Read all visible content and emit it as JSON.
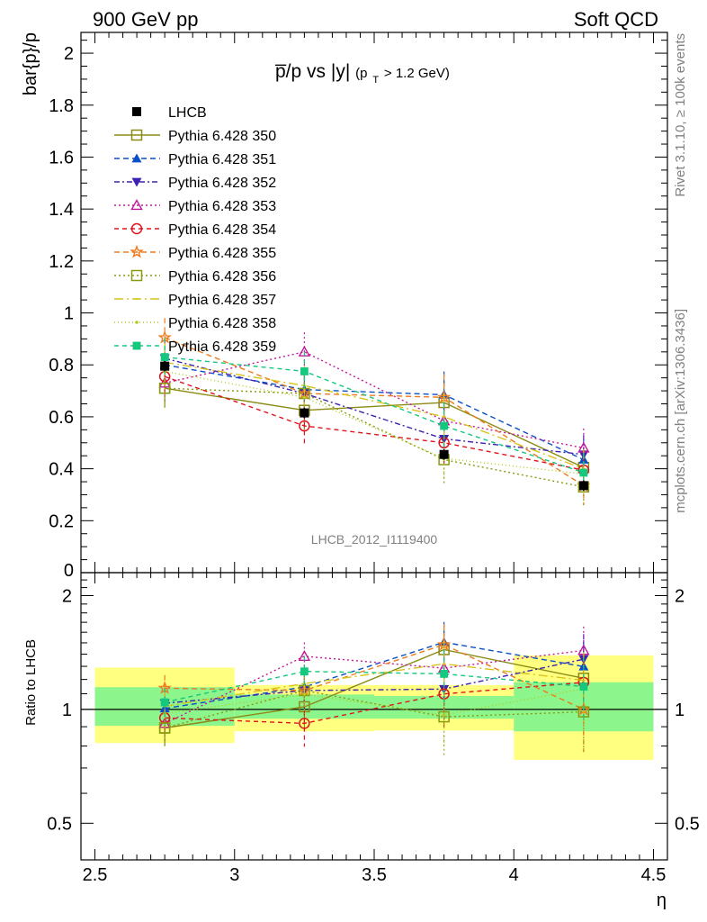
{
  "header": {
    "left": "900 GeV pp",
    "right": "Soft QCD"
  },
  "side": {
    "top": "Rivet 3.1.10, ≥ 100k events",
    "bottom": "mcplots.cern.ch [arXiv:1306.3436]"
  },
  "chart_data": {
    "type": "line",
    "title_main": "p̅/p vs |y|",
    "title_sub": "(p",
    "title_sub_t": "T",
    "title_sub_rest": " > 1.2 GeV)",
    "ylabel": "bar{p}/p",
    "xlabel": "η",
    "watermark": "LHCB_2012_I1119400",
    "ratio_ylabel": "Ratio to LHCB",
    "x": [
      2.75,
      3.25,
      3.75,
      4.25
    ],
    "xlim": [
      2.45,
      4.55
    ],
    "ylim": [
      0,
      2.08
    ],
    "ratio_ylim": [
      0.4,
      2.3
    ],
    "ratio_log": true,
    "xticks": [
      "2.5",
      "3",
      "3.5",
      "4",
      "4.5"
    ],
    "yticks": [
      "0",
      "0.2",
      "0.4",
      "0.6",
      "0.8",
      "1",
      "1.2",
      "1.4",
      "1.6",
      "1.8",
      "2"
    ],
    "ratio_yticks": [
      "0.5",
      "1",
      "2"
    ],
    "data": {
      "name": "LHCB",
      "values": [
        0.795,
        0.615,
        0.455,
        0.335
      ],
      "bins": [
        [
          2.5,
          3.0
        ],
        [
          3.0,
          3.5
        ],
        [
          3.5,
          4.0
        ],
        [
          4.0,
          4.5
        ]
      ],
      "band_inner": [
        [
          0.905,
          1.145
        ],
        [
          0.945,
          1.095
        ],
        [
          0.945,
          1.085
        ],
        [
          0.875,
          1.18
        ]
      ],
      "band_outer": [
        [
          0.815,
          1.29
        ],
        [
          0.875,
          1.16
        ],
        [
          0.88,
          1.16
        ],
        [
          0.735,
          1.39
        ]
      ]
    },
    "series": [
      {
        "name": "Pythia 6.428 350",
        "color": "#8a8a14",
        "marker": "square-open",
        "dash": "",
        "values": [
          0.71,
          0.625,
          0.655,
          0.405
        ]
      },
      {
        "name": "Pythia 6.428 351",
        "color": "#0a4fc7",
        "marker": "triangle-up",
        "dash": "6,4",
        "values": [
          0.8,
          0.705,
          0.685,
          0.435
        ]
      },
      {
        "name": "Pythia 6.428 352",
        "color": "#3d21b0",
        "marker": "triangle-down",
        "dash": "6,3,2,3",
        "values": [
          0.825,
          0.69,
          0.515,
          0.455
        ]
      },
      {
        "name": "Pythia 6.428 353",
        "color": "#c2189b",
        "marker": "triangle-open",
        "dash": "2,3",
        "values": [
          0.73,
          0.85,
          0.585,
          0.48
        ]
      },
      {
        "name": "Pythia 6.428 354",
        "color": "#e0141e",
        "marker": "circle-open",
        "dash": "5,4",
        "values": [
          0.755,
          0.565,
          0.5,
          0.395
        ]
      },
      {
        "name": "Pythia 6.428 355",
        "color": "#f07a1e",
        "marker": "star",
        "dash": "6,4",
        "values": [
          0.905,
          0.69,
          0.675,
          0.335
        ]
      },
      {
        "name": "Pythia 6.428 356",
        "color": "#8a9a10",
        "marker": "square-open",
        "dash": "2,3",
        "values": [
          0.71,
          0.69,
          0.435,
          0.33
        ]
      },
      {
        "name": "Pythia 6.428 357",
        "color": "#d6c41a",
        "marker": "line-only",
        "dash": "10,4,2,4",
        "values": [
          0.81,
          0.72,
          0.6,
          0.4
        ]
      },
      {
        "name": "Pythia 6.428 358",
        "color": "#b0cc20",
        "marker": "dot",
        "dash": "1,3",
        "values": [
          0.775,
          0.675,
          0.44,
          0.38
        ]
      },
      {
        "name": "Pythia 6.428 359",
        "color": "#14c87e",
        "marker": "square",
        "dash": "5,4",
        "values": [
          0.83,
          0.775,
          0.565,
          0.385
        ]
      }
    ],
    "error": [
      0.075,
      0.075,
      0.09,
      0.075
    ]
  }
}
